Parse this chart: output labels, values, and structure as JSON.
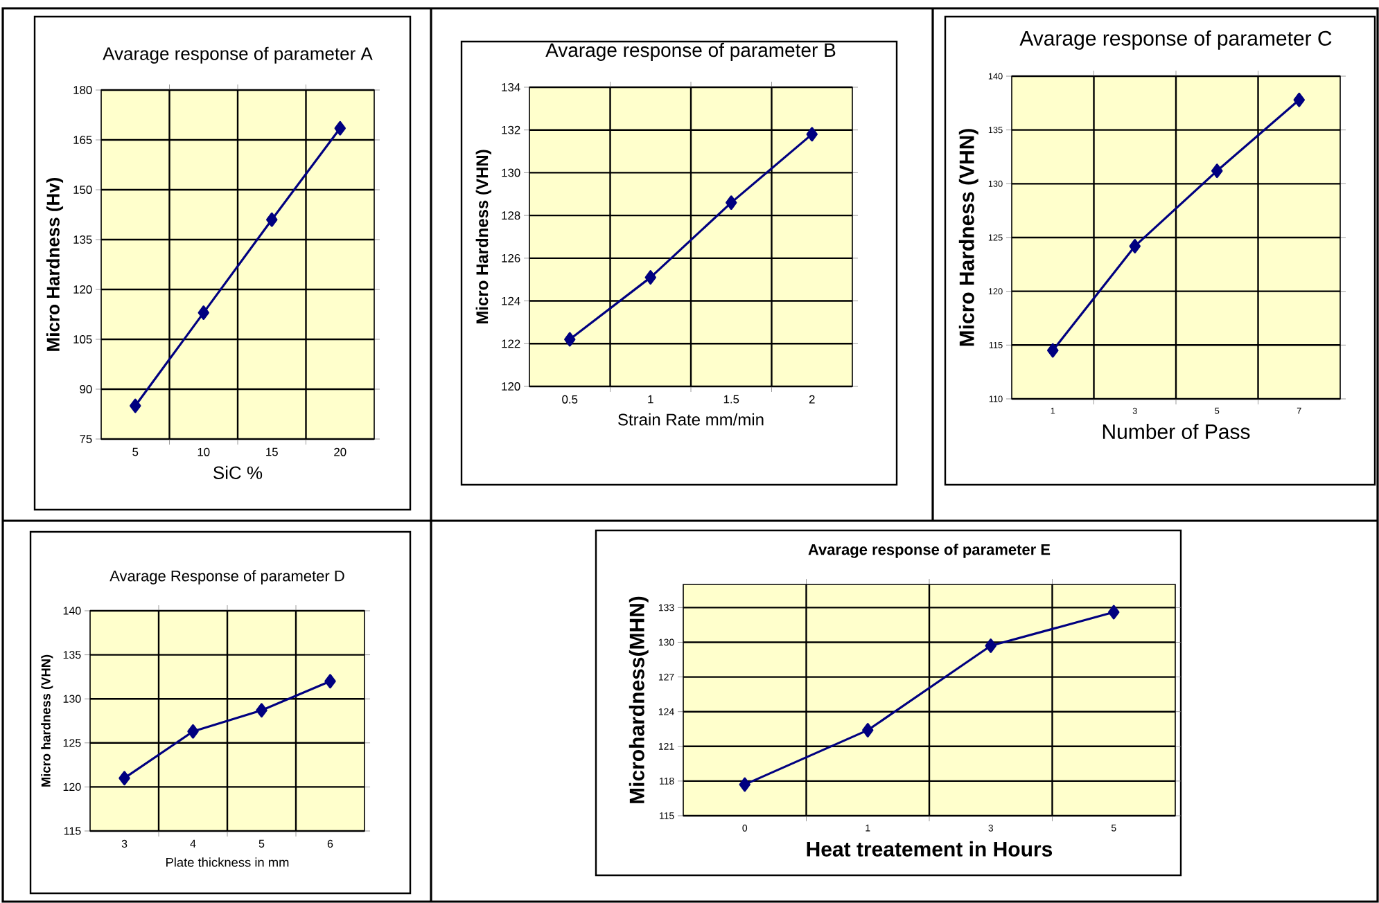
{
  "chart_data": [
    {
      "type": "line",
      "title": "Avarage response of parameter A",
      "xlabel": "SiC %",
      "ylabel": "Micro Hardness   (Hv)",
      "categories": [
        "5",
        "10",
        "15",
        "20"
      ],
      "series": [
        {
          "color": "#000080",
          "values": [
            85,
            113,
            141,
            168.5
          ]
        }
      ],
      "ylim": [
        75,
        180
      ],
      "yticks": [
        75,
        90,
        105,
        120,
        135,
        150,
        165,
        180
      ],
      "grid": true,
      "marker": "diamond",
      "line_style": "solid"
    },
    {
      "type": "line",
      "title": "Avarage response of parameter B",
      "xlabel": "Strain Rate  mm/min",
      "ylabel": "Micro Hardness (VHN)",
      "categories": [
        "0.5",
        "1",
        "1.5",
        "2"
      ],
      "series": [
        {
          "color": "#000080",
          "values": [
            122.2,
            125.1,
            128.6,
            131.8
          ]
        }
      ],
      "ylim": [
        120,
        134
      ],
      "yticks": [
        120,
        122,
        124,
        126,
        128,
        130,
        132,
        134
      ],
      "grid": true,
      "marker": "diamond",
      "line_style": "solid"
    },
    {
      "type": "line",
      "title": "Avarage response of parameter C",
      "xlabel": "Number of Pass",
      "ylabel": "Micro Hardness (VHN)",
      "categories": [
        "1",
        "3",
        "5",
        "7"
      ],
      "series": [
        {
          "color": "#000080",
          "values": [
            114.5,
            124.2,
            131.2,
            137.8
          ]
        }
      ],
      "ylim": [
        110,
        140
      ],
      "yticks": [
        110,
        115,
        120,
        125,
        130,
        135,
        140
      ],
      "grid": true,
      "marker": "diamond",
      "line_style": "solid"
    },
    {
      "type": "line",
      "title": "Avarage Response of parameter D",
      "xlabel": "Plate thickness in mm",
      "ylabel": "Micro hardness (VHN)",
      "categories": [
        "3",
        "4",
        "5",
        "6"
      ],
      "series": [
        {
          "color": "#000080",
          "values": [
            121,
            126.3,
            128.7,
            132
          ]
        }
      ],
      "ylim": [
        115,
        140
      ],
      "yticks": [
        115,
        120,
        125,
        130,
        135,
        140
      ],
      "grid": true,
      "marker": "diamond",
      "line_style": "solid"
    },
    {
      "type": "line",
      "title": "Avarage response of parameter  E",
      "xlabel": "Heat treatement in Hours",
      "ylabel": "Microhardness(MHN)",
      "categories": [
        "0",
        "1",
        "3",
        "5"
      ],
      "series": [
        {
          "color": "#000080",
          "values": [
            117.7,
            122.4,
            129.7,
            132.6
          ]
        }
      ],
      "ylim": [
        115,
        135
      ],
      "yticks": [
        115,
        118,
        121,
        124,
        127,
        130,
        133
      ],
      "grid": true,
      "marker": "diamond",
      "line_style": "solid"
    }
  ]
}
